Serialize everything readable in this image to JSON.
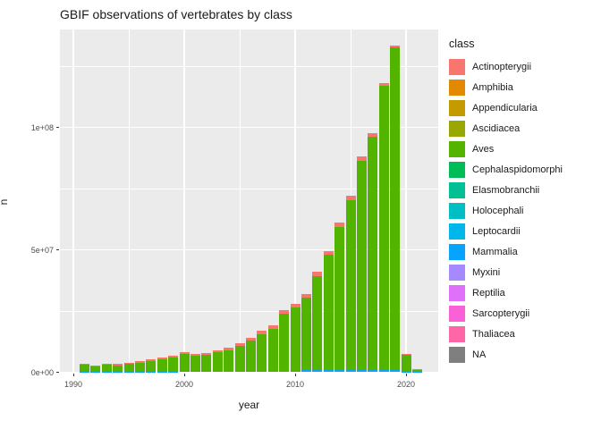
{
  "page": {
    "background": "#FFFFFF"
  },
  "chart": {
    "title": "GBIF observations of vertebrates by class",
    "panel_bg": "#EBEBEB",
    "grid_color": "#FFFFFF",
    "axis_text_color": "#4D4D4D",
    "text_color": "#1A1A1A"
  },
  "chart_data": {
    "type": "bar",
    "stacked": true,
    "title": "GBIF observations of vertebrates by class",
    "xlabel": "year",
    "ylabel": "n",
    "x": [
      1991,
      1992,
      1993,
      1994,
      1995,
      1996,
      1997,
      1998,
      1999,
      2000,
      2001,
      2002,
      2003,
      2004,
      2005,
      2006,
      2007,
      2008,
      2009,
      2010,
      2011,
      2012,
      2013,
      2014,
      2015,
      2016,
      2017,
      2018,
      2019,
      2020,
      2021
    ],
    "series": [
      {
        "name": "Actinopterygii",
        "color": "#F8766D",
        "values": [
          500000,
          400000,
          500000,
          400000,
          500000,
          500000,
          600000,
          700000,
          800000,
          900000,
          800000,
          800000,
          900000,
          1000000,
          1100000,
          1200000,
          1400000,
          1500000,
          1600000,
          1600000,
          1700000,
          1800000,
          1500000,
          1700000,
          1600000,
          1600000,
          1200000,
          1000000,
          1000000,
          200000,
          50000
        ]
      },
      {
        "name": "Aves",
        "color": "#53B400",
        "values": [
          3050000,
          2450000,
          3050000,
          2850000,
          3400000,
          3900000,
          4500000,
          5300000,
          5800000,
          7000000,
          6400000,
          6700000,
          7600000,
          8500000,
          10100000,
          12200000,
          15000000,
          17200000,
          23200000,
          25700000,
          29500000,
          38300000,
          47100000,
          58400000,
          69500000,
          85500000,
          95400000,
          116100000,
          131700000,
          7000000,
          1000000
        ]
      },
      {
        "name": "Mammalia",
        "color": "#06A4FF",
        "values": [
          50000,
          50000,
          50000,
          50000,
          100000,
          100000,
          100000,
          100000,
          200000,
          400000,
          400000,
          400000,
          500000,
          500000,
          500000,
          600000,
          600000,
          600000,
          700000,
          700000,
          800000,
          900000,
          900000,
          900000,
          900000,
          900000,
          900000,
          900000,
          800000,
          300000,
          50000
        ]
      }
    ],
    "totals": [
      3600000,
      2900000,
      3600000,
      3300000,
      4000000,
      4500000,
      5200000,
      6100000,
      6800000,
      8300000,
      7600000,
      7900000,
      9000000,
      10000000,
      11700000,
      14000000,
      17000000,
      19300000,
      25500000,
      28000000,
      32000000,
      41000000,
      49500000,
      61000000,
      72000000,
      88000000,
      97500000,
      118000000,
      133500000,
      7500000,
      1100000
    ],
    "xticks": [
      1990,
      2000,
      2010,
      2020
    ],
    "xticks_minor": [
      1995,
      2005,
      2015
    ],
    "yticks": [
      {
        "value": 0,
        "label": "0e+00"
      },
      {
        "value": 50000000,
        "label": "5e+07"
      },
      {
        "value": 100000000,
        "label": "1e+08"
      }
    ],
    "yticks_minor": [
      25000000,
      75000000,
      125000000
    ],
    "ylim": [
      0,
      140000000
    ],
    "xlim": [
      1988.8,
      2022.9
    ],
    "grid": true,
    "legend_position": "right"
  },
  "legend": {
    "title": "class",
    "items": [
      {
        "label": "Actinopterygii",
        "color": "#F8766D"
      },
      {
        "label": "Amphibia",
        "color": "#E38900"
      },
      {
        "label": "Appendicularia",
        "color": "#C49A00"
      },
      {
        "label": "Ascidiacea",
        "color": "#99A800"
      },
      {
        "label": "Aves",
        "color": "#53B400"
      },
      {
        "label": "Cephalaspidomorphi",
        "color": "#00BC56"
      },
      {
        "label": "Elasmobranchii",
        "color": "#00C094"
      },
      {
        "label": "Holocephali",
        "color": "#00BFC4"
      },
      {
        "label": "Leptocardii",
        "color": "#00B6EB"
      },
      {
        "label": "Mammalia",
        "color": "#06A4FF"
      },
      {
        "label": "Myxini",
        "color": "#A58AFF"
      },
      {
        "label": "Reptilia",
        "color": "#DF70F8"
      },
      {
        "label": "Sarcopterygii",
        "color": "#FB61D7"
      },
      {
        "label": "Thaliacea",
        "color": "#FF66A8"
      },
      {
        "label": "NA",
        "color": "#7F7F7F"
      }
    ]
  }
}
